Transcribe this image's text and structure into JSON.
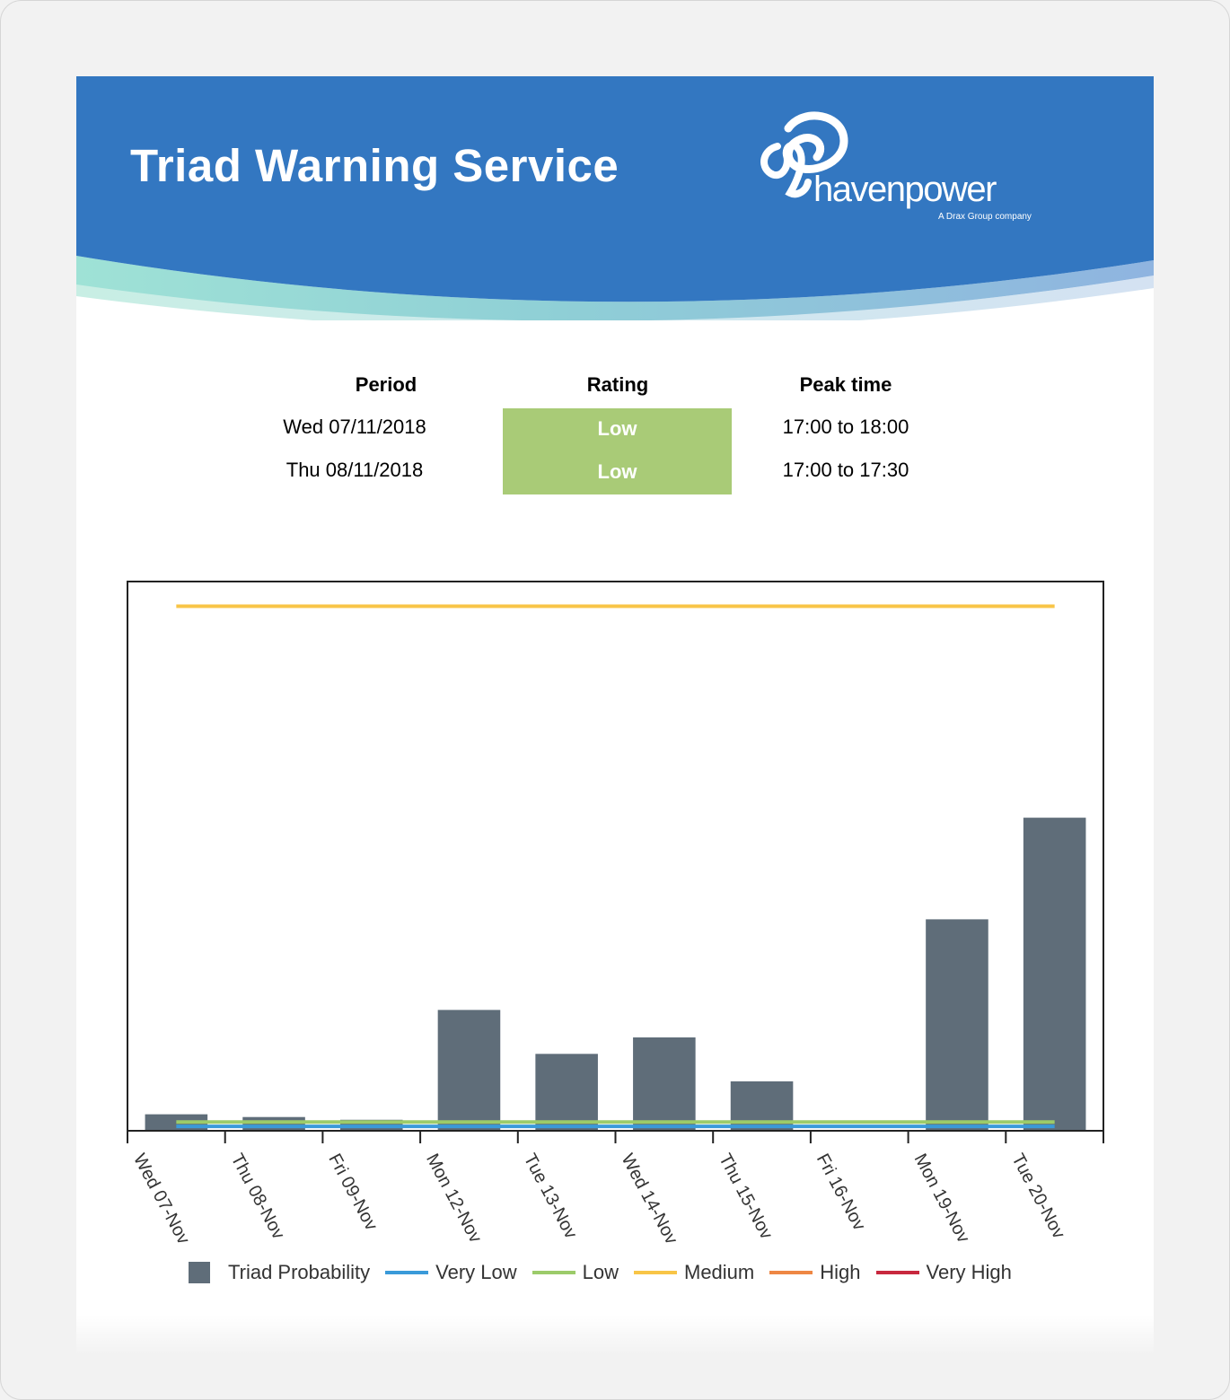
{
  "header": {
    "title": "Triad Warning Service",
    "logo_text": "havenpower",
    "logo_tagline": "A Drax Group company",
    "brand_color": "#3377c1"
  },
  "status_table": {
    "headers": [
      "Period",
      "Rating",
      "Peak time"
    ],
    "rows": [
      {
        "period": "Wed 07/11/2018",
        "rating": "Low",
        "peak_time": "17:00 to 18:00"
      },
      {
        "period": "Thu 08/11/2018",
        "rating": "Low",
        "peak_time": "17:00 to 17:30"
      }
    ],
    "rating_color": "#a9cb77"
  },
  "chart_data": {
    "type": "bar",
    "title": "",
    "xlabel": "",
    "ylabel": "",
    "ylim": [
      0,
      100
    ],
    "grid": false,
    "legend_position": "bottom",
    "categories": [
      "Wed 07-Nov",
      "Thu 08-Nov",
      "Fri 09-Nov",
      "Mon 12-Nov",
      "Tue 13-Nov",
      "Wed 14-Nov",
      "Thu 15-Nov",
      "Fri 16-Nov",
      "Mon 19-Nov",
      "Tue 20-Nov"
    ],
    "series": [
      {
        "name": "Triad Probability",
        "kind": "bar",
        "color": "#5f6d79",
        "values": [
          3,
          2.5,
          2,
          22,
          14,
          17,
          9,
          0,
          38.5,
          57
        ]
      }
    ],
    "threshold_lines": [
      {
        "name": "Very Low",
        "color": "#3a9ad9",
        "value": 0.8
      },
      {
        "name": "Low",
        "color": "#9ccb6a",
        "value": 1.6
      },
      {
        "name": "Medium",
        "color": "#f8c547",
        "value": 95.5
      },
      {
        "name": "High",
        "color": "#ee8744",
        "value": null
      },
      {
        "name": "Very High",
        "color": "#c8283e",
        "value": null
      }
    ]
  }
}
